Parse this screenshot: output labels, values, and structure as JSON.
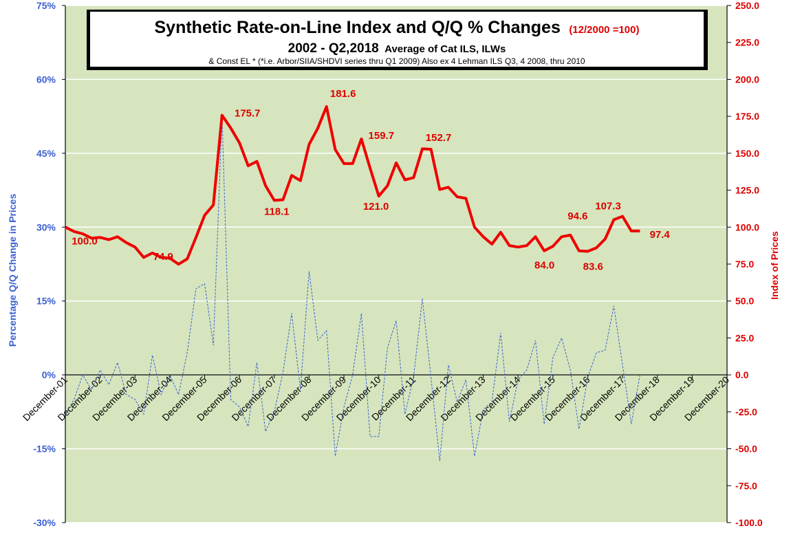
{
  "chart_data": {
    "type": "line",
    "title": {
      "main": "Synthetic Rate-on-Line Index and Q/Q % Changes",
      "main_suffix": "(12/2000 =100)",
      "line2": "2002 - Q2,2018",
      "line2_suffix": "Average of Cat ILS, ILWs",
      "line3": "& Const EL * (*i.e. Arbor/SIIA/SHDVI  series thru Q1 2009) Also ex 4 Lehman ILS Q3, 4 2008, thru 2010"
    },
    "ylabel_left": "Percentage Q/Q Change in Prices",
    "ylabel_right": "Index of Prices",
    "ylim_left": [
      -30,
      75
    ],
    "ylim_right": [
      -100,
      250
    ],
    "xlim": [
      2001.917,
      2020.917
    ],
    "grid": "horizontal",
    "yticks_left": [
      "75%",
      "60%",
      "45%",
      "30%",
      "15%",
      "0%",
      "-15%",
      "-30%"
    ],
    "yticks_right": [
      "250.0",
      "225.0",
      "200.0",
      "175.0",
      "150.0",
      "125.0",
      "100.0",
      "75.0",
      "50.0",
      "25.0",
      "0.0",
      "-25.0",
      "-50.0",
      "-75.0",
      "-100.0"
    ],
    "xticks": [
      "December-01",
      "December-02",
      "December-03",
      "December-04",
      "December-05",
      "December-06",
      "December-07",
      "December-08",
      "December-09",
      "December-10",
      "December-11",
      "December-12",
      "December-13",
      "December-14",
      "December-15",
      "December-16",
      "December-17",
      "December-18",
      "December-19",
      "December-20"
    ],
    "series": [
      {
        "axis": "right",
        "color": "#ee0000",
        "x": [
          2001.917,
          2002.167,
          2002.417,
          2002.667,
          2002.917,
          2003.167,
          2003.417,
          2003.667,
          2003.917,
          2004.167,
          2004.417,
          2004.667,
          2004.917,
          2005.167,
          2005.417,
          2005.667,
          2005.917,
          2006.167,
          2006.417,
          2006.667,
          2006.917,
          2007.167,
          2007.417,
          2007.667,
          2007.917,
          2008.167,
          2008.417,
          2008.667,
          2008.917,
          2009.167,
          2009.417,
          2009.667,
          2009.917,
          2010.167,
          2010.417,
          2010.667,
          2010.917,
          2011.167,
          2011.417,
          2011.667,
          2011.917,
          2012.167,
          2012.417,
          2012.667,
          2012.917,
          2013.167,
          2013.417,
          2013.667,
          2013.917,
          2014.167,
          2014.417,
          2014.667,
          2014.917,
          2015.167,
          2015.417,
          2015.667,
          2015.917,
          2016.167,
          2016.417,
          2016.667,
          2016.917,
          2017.167,
          2017.417,
          2017.667,
          2017.917,
          2018.167,
          2018.417
        ],
        "values": [
          100.0,
          97.0,
          95.5,
          92.5,
          93.0,
          91.5,
          93.5,
          89.5,
          86.5,
          79.5,
          82.5,
          79.5,
          79.0,
          74.9,
          78.5,
          93.0,
          108.0,
          115.0,
          175.7,
          167.0,
          157.0,
          141.5,
          144.5,
          128.0,
          118.1,
          118.5,
          135.0,
          131.5,
          156.0,
          167.0,
          181.6,
          152.5,
          143.0,
          143.0,
          159.7,
          140.0,
          121.0,
          128.0,
          143.5,
          132.0,
          133.5,
          153.0,
          152.7,
          125.5,
          127.0,
          120.5,
          119.5,
          100.0,
          93.5,
          88.5,
          96.5,
          87.5,
          86.5,
          87.5,
          93.5,
          84.0,
          87.0,
          93.5,
          94.6,
          84.0,
          83.6,
          86.0,
          92.0,
          105.0,
          107.3,
          97.4,
          97.4
        ]
      },
      {
        "axis": "left",
        "color": "#3a5fd0",
        "x": [
          2001.917,
          2002.167,
          2002.417,
          2002.667,
          2002.917,
          2003.167,
          2003.417,
          2003.667,
          2003.917,
          2004.167,
          2004.417,
          2004.667,
          2004.917,
          2005.167,
          2005.417,
          2005.667,
          2005.917,
          2006.167,
          2006.417,
          2006.667,
          2006.917,
          2007.167,
          2007.417,
          2007.667,
          2007.917,
          2008.167,
          2008.417,
          2008.667,
          2008.917,
          2009.167,
          2009.417,
          2009.667,
          2009.917,
          2010.167,
          2010.417,
          2010.667,
          2010.917,
          2011.167,
          2011.417,
          2011.667,
          2011.917,
          2012.167,
          2012.417,
          2012.667,
          2012.917,
          2013.167,
          2013.417,
          2013.667,
          2013.917,
          2014.167,
          2014.417,
          2014.667,
          2014.917,
          2015.167,
          2015.417,
          2015.667,
          2015.917,
          2016.167,
          2016.417,
          2016.667,
          2016.917,
          2017.167,
          2017.417,
          2017.667,
          2017.917,
          2018.167,
          2018.417
        ],
        "values": [
          -8.0,
          -5.0,
          0.0,
          -3.0,
          1.0,
          -2.0,
          2.5,
          -4.0,
          -5.0,
          -8.0,
          4.0,
          -4.0,
          0.0,
          -4.0,
          4.5,
          17.5,
          18.5,
          6.0,
          52.5,
          -5.0,
          -6.5,
          -10.5,
          2.5,
          -11.5,
          -7.5,
          0.5,
          12.5,
          -3.0,
          21.0,
          7.0,
          9.0,
          -16.5,
          -6.5,
          0.0,
          12.5,
          -12.5,
          -12.5,
          5.5,
          11.0,
          -8.0,
          -0.5,
          15.5,
          -0.5,
          -17.5,
          2.0,
          -5.5,
          -1.0,
          -16.5,
          -7.0,
          -5.5,
          8.5,
          -9.5,
          -1.0,
          1.0,
          7.0,
          -10.0,
          3.5,
          7.5,
          1.0,
          -11.0,
          -0.5,
          4.5,
          5.0,
          14.0,
          2.0,
          -10.0,
          0.0
        ]
      }
    ],
    "annotations": [
      {
        "text": "100.0",
        "x": 2002.0,
        "y": 100.0
      },
      {
        "text": "74.9",
        "x": 2005.17,
        "y": 74.9
      },
      {
        "text": "175.7",
        "x": 2006.42,
        "y": 175.7
      },
      {
        "text": "118.1",
        "x": 2007.92,
        "y": 118.1
      },
      {
        "text": "181.6",
        "x": 2009.42,
        "y": 181.6
      },
      {
        "text": "159.7",
        "x": 2010.42,
        "y": 159.7
      },
      {
        "text": "121.0",
        "x": 2010.92,
        "y": 121.0
      },
      {
        "text": "152.7",
        "x": 2012.42,
        "y": 152.7
      },
      {
        "text": "94.6",
        "x": 2016.42,
        "y": 94.6
      },
      {
        "text": "84.0",
        "x": 2016.0,
        "y": 84.0
      },
      {
        "text": "83.6",
        "x": 2017.0,
        "y": 83.6
      },
      {
        "text": "107.3",
        "x": 2017.92,
        "y": 107.3
      },
      {
        "text": "97.4",
        "x": 2018.42,
        "y": 97.4
      }
    ],
    "style": {
      "plot_bg": "#d6e5bd",
      "grid_color": "#ffffff",
      "left_axis_color": "#3a5fd0",
      "right_axis_color": "#dd0000",
      "title_box_bg": "#ffffff"
    }
  }
}
